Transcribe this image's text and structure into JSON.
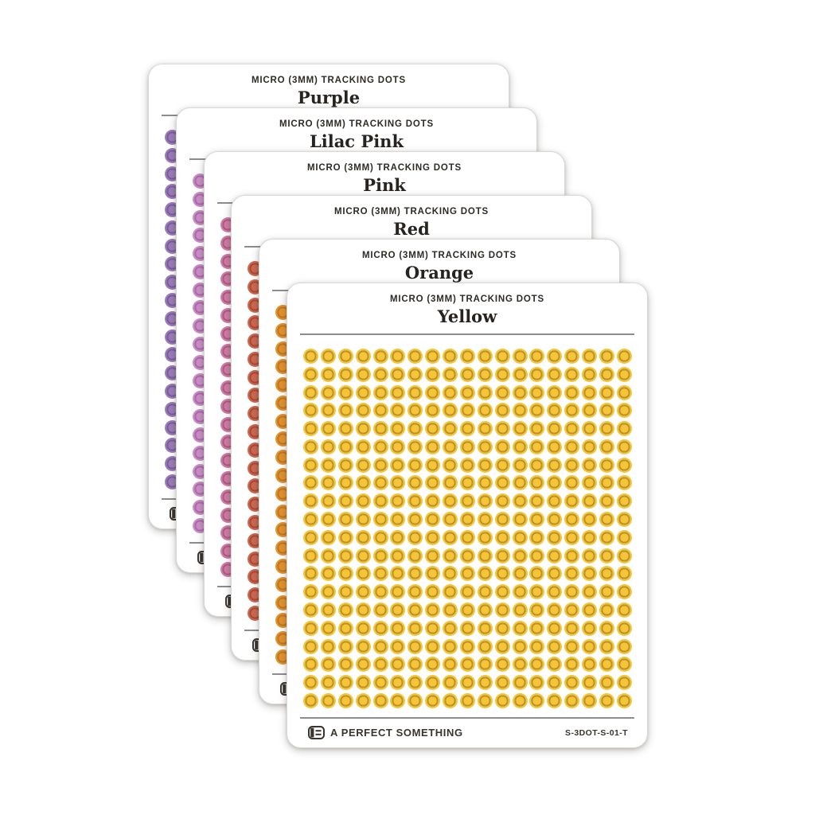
{
  "product": {
    "header_label": "MICRO (3MM) TRACKING DOTS",
    "brand_name": "A PERFECT SOMETHING",
    "sku": "S-3DOT-S-01-T"
  },
  "icons": {
    "brand_logo": "notebook-logo-icon"
  },
  "sheets": [
    {
      "name": "Purple",
      "dot_fill": "#9a7db7",
      "dot_ring": "#7b5c9e"
    },
    {
      "name": "Lilac Pink",
      "dot_fill": "#c98fc5",
      "dot_ring": "#ab69a9"
    },
    {
      "name": "Pink",
      "dot_fill": "#cd7ca3",
      "dot_ring": "#b15884"
    },
    {
      "name": "Red",
      "dot_fill": "#c96952",
      "dot_ring": "#ad4733"
    },
    {
      "name": "Orange",
      "dot_fill": "#e0932f",
      "dot_ring": "#c2761f"
    },
    {
      "name": "Yellow",
      "dot_fill": "#f6c537",
      "dot_ring": "#b8922c"
    }
  ],
  "stack_order": "array order is back card to front card",
  "dot_grid": {
    "columns": 19,
    "rows": 20,
    "dots_per_sheet": 380
  },
  "colors": {
    "card_background": "#ffffff",
    "card_border": "#dcd9d5",
    "ink": "#2e2b27",
    "divider": "#8d8d8d",
    "page_background": "#ffffff"
  }
}
